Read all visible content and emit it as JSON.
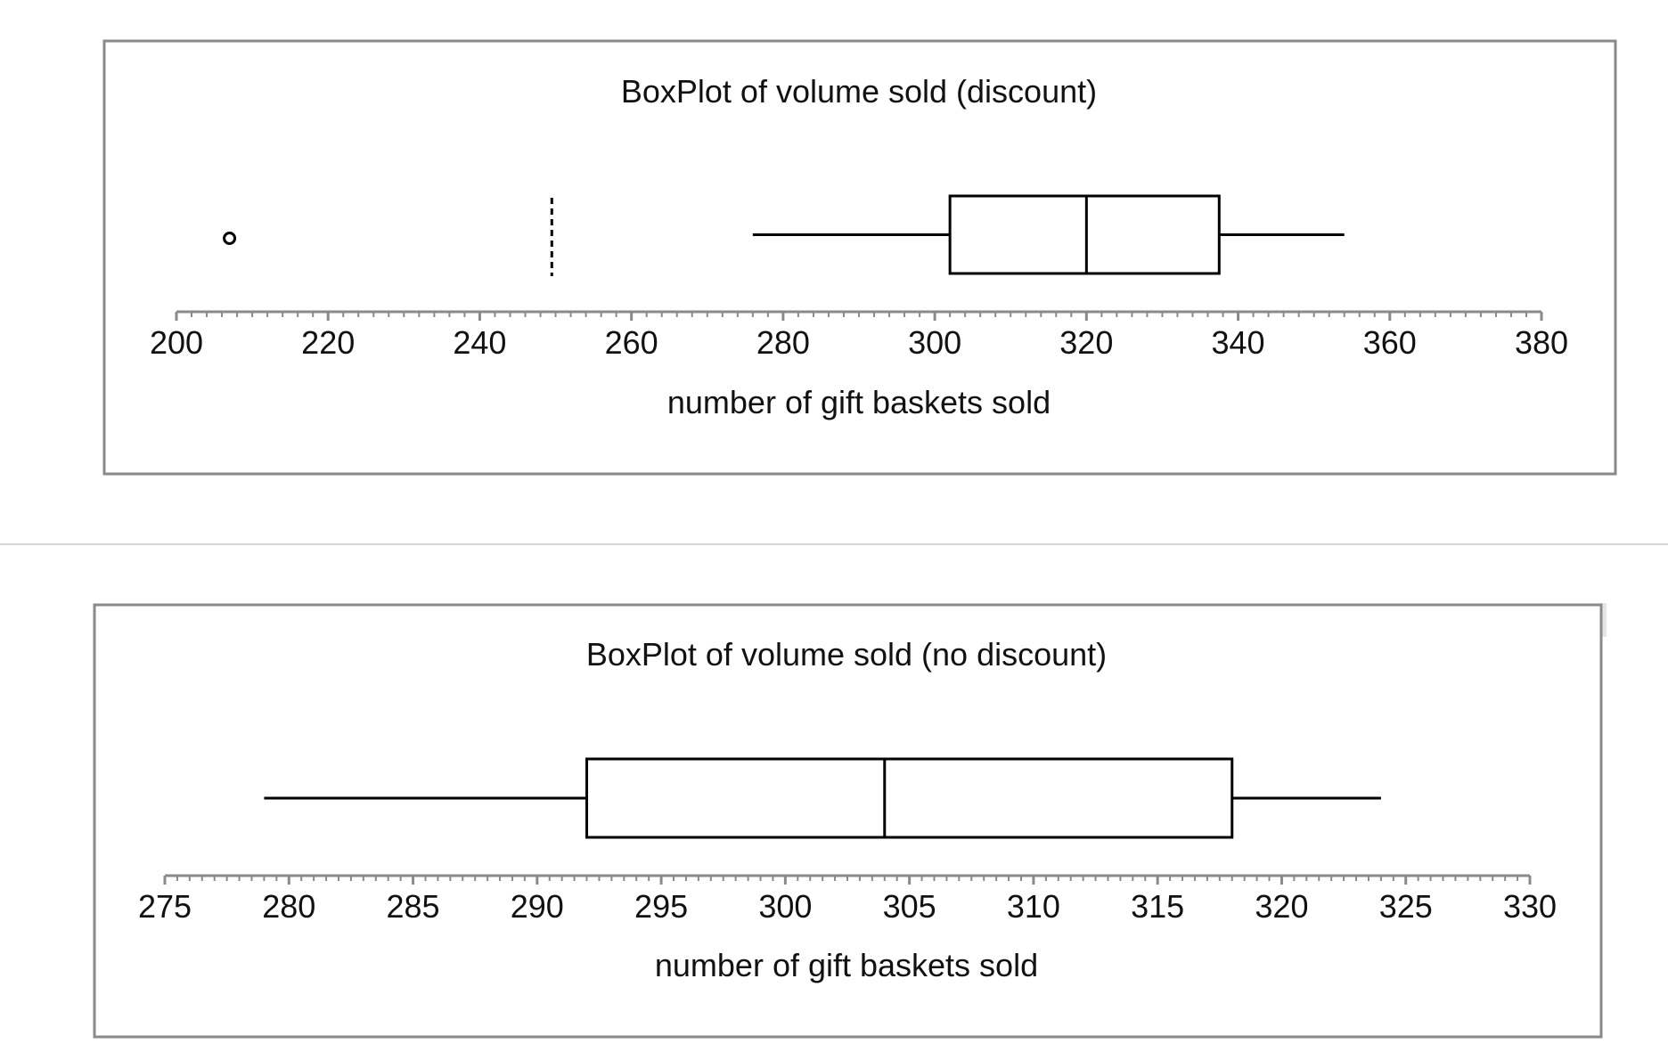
{
  "chart_data": [
    {
      "type": "boxplot",
      "title": "BoxPlot of volume sold (discount)",
      "xlabel": "number of gift baskets sold",
      "xlim": [
        200,
        380
      ],
      "ticks": [
        "200",
        "220",
        "240",
        "260",
        "280",
        "300",
        "320",
        "340",
        "360",
        "380"
      ],
      "box": {
        "whisker_low": 276,
        "q1": 302,
        "median": 320,
        "q3": 337.5,
        "whisker_high": 354
      },
      "outliers": [
        207
      ],
      "reference_lines": [
        249.5
      ]
    },
    {
      "type": "boxplot",
      "title": "BoxPlot of volume sold (no discount)",
      "xlabel": "number of gift baskets sold",
      "xlim": [
        275,
        330
      ],
      "ticks": [
        "275",
        "280",
        "285",
        "290",
        "295",
        "300",
        "305",
        "310",
        "315",
        "320",
        "325",
        "330"
      ],
      "box": {
        "whisker_low": 279,
        "q1": 292,
        "median": 304,
        "q3": 318,
        "whisker_high": 324
      },
      "outliers": [],
      "reference_lines": []
    }
  ]
}
